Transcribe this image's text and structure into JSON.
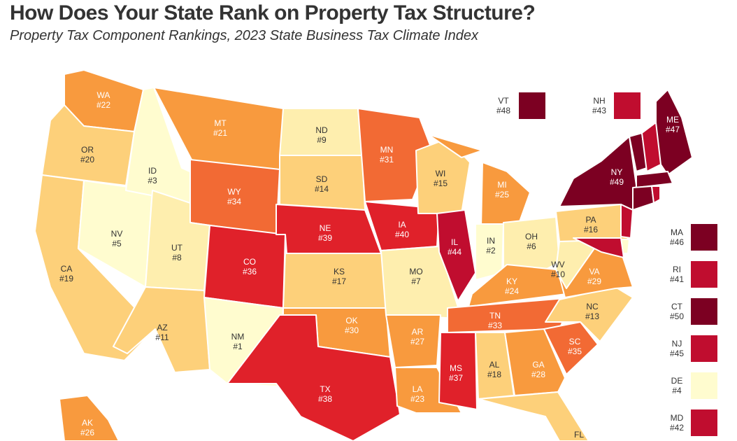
{
  "title": "How Does Your State Rank on Property Tax Structure?",
  "subtitle": "Property Tax Component Rankings, 2023 State Business Tax Climate Index",
  "colors": {
    "r1_5": "#fffccf",
    "r6_10": "#feeeae",
    "r11_20": "#fdd07a",
    "r21_30": "#f89a3e",
    "r31_35": "#f26a34",
    "r36_40": "#e0212a",
    "r41_45": "#c00d2f",
    "r46_50": "#7c0022"
  },
  "states": [
    {
      "abbr": "WA",
      "rank": "#22"
    },
    {
      "abbr": "OR",
      "rank": "#20"
    },
    {
      "abbr": "CA",
      "rank": "#19"
    },
    {
      "abbr": "NV",
      "rank": "#5"
    },
    {
      "abbr": "ID",
      "rank": "#3"
    },
    {
      "abbr": "MT",
      "rank": "#21"
    },
    {
      "abbr": "WY",
      "rank": "#34"
    },
    {
      "abbr": "UT",
      "rank": "#8"
    },
    {
      "abbr": "AZ",
      "rank": "#11"
    },
    {
      "abbr": "CO",
      "rank": "#36"
    },
    {
      "abbr": "NM",
      "rank": "#1"
    },
    {
      "abbr": "ND",
      "rank": "#9"
    },
    {
      "abbr": "SD",
      "rank": "#14"
    },
    {
      "abbr": "NE",
      "rank": "#39"
    },
    {
      "abbr": "KS",
      "rank": "#17"
    },
    {
      "abbr": "OK",
      "rank": "#30"
    },
    {
      "abbr": "TX",
      "rank": "#38"
    },
    {
      "abbr": "MN",
      "rank": "#31"
    },
    {
      "abbr": "IA",
      "rank": "#40"
    },
    {
      "abbr": "MO",
      "rank": "#7"
    },
    {
      "abbr": "AR",
      "rank": "#27"
    },
    {
      "abbr": "LA",
      "rank": "#23"
    },
    {
      "abbr": "WI",
      "rank": "#15"
    },
    {
      "abbr": "IL",
      "rank": "#44"
    },
    {
      "abbr": "MI",
      "rank": "#25"
    },
    {
      "abbr": "IN",
      "rank": "#2"
    },
    {
      "abbr": "OH",
      "rank": "#6"
    },
    {
      "abbr": "KY",
      "rank": "#24"
    },
    {
      "abbr": "TN",
      "rank": "#33"
    },
    {
      "abbr": "MS",
      "rank": "#37"
    },
    {
      "abbr": "AL",
      "rank": "#18"
    },
    {
      "abbr": "GA",
      "rank": "#28"
    },
    {
      "abbr": "FL",
      "rank": ""
    },
    {
      "abbr": "SC",
      "rank": "#35"
    },
    {
      "abbr": "NC",
      "rank": "#13"
    },
    {
      "abbr": "VA",
      "rank": "#29"
    },
    {
      "abbr": "WV",
      "rank": "#10"
    },
    {
      "abbr": "PA",
      "rank": "#16"
    },
    {
      "abbr": "NY",
      "rank": "#49"
    },
    {
      "abbr": "ME",
      "rank": "#47"
    },
    {
      "abbr": "AK",
      "rank": "#26"
    }
  ],
  "inset_states": [
    {
      "abbr": "VT",
      "rank": "#48"
    },
    {
      "abbr": "NH",
      "rank": "#43"
    },
    {
      "abbr": "MA",
      "rank": "#46"
    },
    {
      "abbr": "RI",
      "rank": "#41"
    },
    {
      "abbr": "CT",
      "rank": "#50"
    },
    {
      "abbr": "NJ",
      "rank": "#45"
    },
    {
      "abbr": "DE",
      "rank": "#4"
    },
    {
      "abbr": "MD",
      "rank": "#42"
    }
  ]
}
